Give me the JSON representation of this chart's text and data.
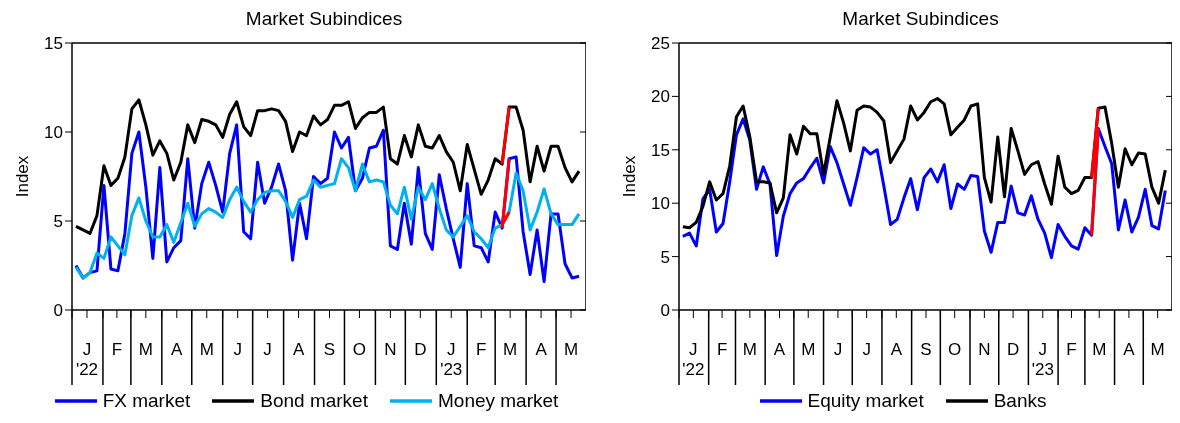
{
  "chart_data": [
    {
      "type": "line",
      "title": "Market Subindices",
      "ylabel": "Index",
      "legend": "bottom",
      "xlim": [
        "2022-01-01",
        "2023-05-31"
      ],
      "xticks": [
        {
          "value": "2022-01-01",
          "label": null
        },
        {
          "value": "2022-01-16",
          "label": "J\n'22"
        },
        {
          "value": "2022-02-01",
          "label": null
        },
        {
          "value": "2022-02-15",
          "label": "F"
        },
        {
          "value": "2022-03-01",
          "label": null
        },
        {
          "value": "2022-03-16",
          "label": "M"
        },
        {
          "value": "2022-04-01",
          "label": null
        },
        {
          "value": "2022-04-16",
          "label": "A"
        },
        {
          "value": "2022-05-01",
          "label": null
        },
        {
          "value": "2022-05-16",
          "label": "M"
        },
        {
          "value": "2022-06-01",
          "label": null
        },
        {
          "value": "2022-06-16",
          "label": "J"
        },
        {
          "value": "2022-07-01",
          "label": null
        },
        {
          "value": "2022-07-16",
          "label": "J"
        },
        {
          "value": "2022-08-01",
          "label": null
        },
        {
          "value": "2022-08-16",
          "label": "A"
        },
        {
          "value": "2022-09-01",
          "label": null
        },
        {
          "value": "2022-09-16",
          "label": "S"
        },
        {
          "value": "2022-10-01",
          "label": null
        },
        {
          "value": "2022-10-16",
          "label": "O"
        },
        {
          "value": "2022-11-01",
          "label": null
        },
        {
          "value": "2022-11-16",
          "label": "N"
        },
        {
          "value": "2022-12-01",
          "label": null
        },
        {
          "value": "2022-12-16",
          "label": "D"
        },
        {
          "value": "2023-01-01",
          "label": null
        },
        {
          "value": "2023-01-16",
          "label": "J\n'23"
        },
        {
          "value": "2023-02-01",
          "label": null
        },
        {
          "value": "2023-02-15",
          "label": "F"
        },
        {
          "value": "2023-03-01",
          "label": null
        },
        {
          "value": "2023-03-16",
          "label": "M"
        },
        {
          "value": "2023-04-01",
          "label": null
        },
        {
          "value": "2023-04-16",
          "label": "A"
        },
        {
          "value": "2023-05-01",
          "label": null
        },
        {
          "value": "2023-05-16",
          "label": "M"
        }
      ],
      "ylim": [
        0,
        15
      ],
      "yticks": [
        0,
        5,
        10,
        15
      ],
      "x": [
        "2022-01-05",
        "2022-01-12",
        "2022-01-19",
        "2022-01-26",
        "2022-02-02",
        "2022-02-09",
        "2022-02-16",
        "2022-02-23",
        "2022-03-02",
        "2022-03-09",
        "2022-03-16",
        "2022-03-23",
        "2022-03-30",
        "2022-04-06",
        "2022-04-13",
        "2022-04-20",
        "2022-04-27",
        "2022-05-04",
        "2022-05-11",
        "2022-05-18",
        "2022-05-25",
        "2022-06-01",
        "2022-06-08",
        "2022-06-15",
        "2022-06-22",
        "2022-06-29",
        "2022-07-06",
        "2022-07-13",
        "2022-07-20",
        "2022-07-27",
        "2022-08-03",
        "2022-08-10",
        "2022-08-17",
        "2022-08-24",
        "2022-08-31",
        "2022-09-07",
        "2022-09-14",
        "2022-09-21",
        "2022-09-28",
        "2022-10-05",
        "2022-10-12",
        "2022-10-19",
        "2022-10-26",
        "2022-11-02",
        "2022-11-09",
        "2022-11-16",
        "2022-11-23",
        "2022-11-30",
        "2022-12-07",
        "2022-12-14",
        "2022-12-21",
        "2022-12-28",
        "2023-01-04",
        "2023-01-11",
        "2023-01-18",
        "2023-01-25",
        "2023-02-01",
        "2023-02-08",
        "2023-02-15",
        "2023-02-22",
        "2023-03-01",
        "2023-03-08",
        "2023-03-15",
        "2023-03-22",
        "2023-03-29",
        "2023-04-05",
        "2023-04-12",
        "2023-04-19",
        "2023-04-26",
        "2023-05-03",
        "2023-05-10",
        "2023-05-17",
        "2023-05-24"
      ],
      "series": [
        {
          "name": "FX market",
          "color": "#0000ff",
          "values": [
            2.5,
            1.8,
            2.1,
            2.2,
            7.0,
            2.3,
            2.2,
            4.3,
            8.8,
            10.0,
            6.9,
            2.9,
            8.0,
            2.7,
            3.5,
            3.9,
            8.5,
            4.6,
            7.1,
            8.3,
            7.0,
            5.5,
            8.8,
            10.4,
            4.4,
            4.0,
            8.3,
            6.0,
            6.9,
            8.2,
            6.7,
            2.8,
            6.0,
            4.0,
            7.5,
            7.1,
            7.4,
            10.0,
            9.1,
            9.7,
            6.7,
            7.4,
            9.1,
            9.2,
            10.1,
            3.6,
            3.4,
            6.0,
            3.7,
            8.0,
            4.3,
            3.4,
            7.6,
            5.7,
            4.0,
            2.4,
            7.1,
            3.6,
            3.5,
            2.7,
            5.5,
            4.6,
            8.5,
            8.6,
            4.4,
            2.0,
            4.5,
            1.6,
            5.4,
            5.4,
            2.6,
            1.8,
            1.9
          ]
        },
        {
          "name": "Bond market",
          "color": "#000000",
          "values": [
            4.7,
            4.5,
            4.3,
            5.3,
            8.1,
            7.0,
            7.4,
            8.6,
            11.3,
            11.8,
            10.4,
            8.7,
            9.5,
            8.8,
            7.3,
            8.3,
            10.4,
            9.4,
            10.7,
            10.6,
            10.4,
            9.7,
            11.0,
            11.7,
            10.3,
            9.8,
            11.2,
            11.2,
            11.3,
            11.2,
            10.6,
            8.9,
            10.0,
            9.8,
            10.9,
            10.4,
            10.7,
            11.5,
            11.5,
            11.7,
            10.2,
            10.8,
            11.1,
            11.1,
            11.4,
            8.5,
            8.2,
            9.8,
            8.6,
            10.4,
            9.2,
            9.1,
            9.8,
            8.9,
            8.3,
            6.7,
            9.3,
            7.9,
            6.5,
            7.3,
            8.5,
            8.2,
            11.4,
            11.4,
            10.1,
            7.2,
            9.2,
            7.8,
            9.2,
            9.2,
            8.0,
            7.2,
            7.8
          ]
        },
        {
          "name": "Money market",
          "color": "#00b0f0",
          "values": [
            2.4,
            1.8,
            2.1,
            3.2,
            2.9,
            4.1,
            3.6,
            3.1,
            5.3,
            6.3,
            5.0,
            4.1,
            4.1,
            4.8,
            3.8,
            4.9,
            6.0,
            4.7,
            5.4,
            5.7,
            5.5,
            5.2,
            6.2,
            6.9,
            6.1,
            5.5,
            6.2,
            6.6,
            6.7,
            6.7,
            6.1,
            5.2,
            6.2,
            6.4,
            7.3,
            6.9,
            7.0,
            7.1,
            8.5,
            8.0,
            6.7,
            8.2,
            7.2,
            7.3,
            7.2,
            5.9,
            5.4,
            6.9,
            5.1,
            6.9,
            6.2,
            7.1,
            5.7,
            4.5,
            4.1,
            4.7,
            5.3,
            4.4,
            4.0,
            3.5,
            4.6,
            4.8,
            5.5,
            7.7,
            6.7,
            4.5,
            5.5,
            6.8,
            5.4,
            4.8,
            4.8,
            4.8,
            5.4
          ]
        },
        {
          "color": "#ff0000",
          "x": [
            "2023-03-08",
            "2023-03-15"
          ],
          "values": [
            8.2,
            11.4
          ]
        },
        {
          "color": "#ff0000",
          "x": [
            "2023-03-08",
            "2023-03-15"
          ],
          "values": [
            4.6,
            8.5
          ]
        },
        {
          "color": "#ff0000",
          "x": [
            "2023-03-08",
            "2023-03-15"
          ],
          "values": [
            4.8,
            5.5
          ]
        }
      ]
    },
    {
      "type": "line",
      "title": "Market Subindices",
      "ylabel": "Index",
      "legend": "bottom",
      "xlim": [
        "2022-01-01",
        "2023-05-31"
      ],
      "xticks": [
        {
          "value": "2022-01-01",
          "label": null
        },
        {
          "value": "2022-01-16",
          "label": "J\n'22"
        },
        {
          "value": "2022-02-01",
          "label": null
        },
        {
          "value": "2022-02-15",
          "label": "F"
        },
        {
          "value": "2022-03-01",
          "label": null
        },
        {
          "value": "2022-03-16",
          "label": "M"
        },
        {
          "value": "2022-04-01",
          "label": null
        },
        {
          "value": "2022-04-16",
          "label": "A"
        },
        {
          "value": "2022-05-01",
          "label": null
        },
        {
          "value": "2022-05-16",
          "label": "M"
        },
        {
          "value": "2022-06-01",
          "label": null
        },
        {
          "value": "2022-06-16",
          "label": "J"
        },
        {
          "value": "2022-07-01",
          "label": null
        },
        {
          "value": "2022-07-16",
          "label": "J"
        },
        {
          "value": "2022-08-01",
          "label": null
        },
        {
          "value": "2022-08-16",
          "label": "A"
        },
        {
          "value": "2022-09-01",
          "label": null
        },
        {
          "value": "2022-09-16",
          "label": "S"
        },
        {
          "value": "2022-10-01",
          "label": null
        },
        {
          "value": "2022-10-16",
          "label": "O"
        },
        {
          "value": "2022-11-01",
          "label": null
        },
        {
          "value": "2022-11-16",
          "label": "N"
        },
        {
          "value": "2022-12-01",
          "label": null
        },
        {
          "value": "2022-12-16",
          "label": "D"
        },
        {
          "value": "2023-01-01",
          "label": null
        },
        {
          "value": "2023-01-16",
          "label": "J\n'23"
        },
        {
          "value": "2023-02-01",
          "label": null
        },
        {
          "value": "2023-02-15",
          "label": "F"
        },
        {
          "value": "2023-03-01",
          "label": null
        },
        {
          "value": "2023-03-16",
          "label": "M"
        },
        {
          "value": "2023-04-01",
          "label": null
        },
        {
          "value": "2023-04-16",
          "label": "A"
        },
        {
          "value": "2023-05-01",
          "label": null
        },
        {
          "value": "2023-05-16",
          "label": "M"
        }
      ],
      "ylim": [
        0,
        25
      ],
      "yticks": [
        0,
        5,
        10,
        15,
        20,
        25
      ],
      "x": [
        "2022-01-05",
        "2022-01-12",
        "2022-01-19",
        "2022-01-26",
        "2022-02-02",
        "2022-02-09",
        "2022-02-16",
        "2022-02-23",
        "2022-03-02",
        "2022-03-09",
        "2022-03-16",
        "2022-03-23",
        "2022-03-30",
        "2022-04-06",
        "2022-04-13",
        "2022-04-20",
        "2022-04-27",
        "2022-05-04",
        "2022-05-11",
        "2022-05-18",
        "2022-05-25",
        "2022-06-01",
        "2022-06-08",
        "2022-06-15",
        "2022-06-22",
        "2022-06-29",
        "2022-07-06",
        "2022-07-13",
        "2022-07-20",
        "2022-07-27",
        "2022-08-03",
        "2022-08-10",
        "2022-08-17",
        "2022-08-24",
        "2022-08-31",
        "2022-09-07",
        "2022-09-14",
        "2022-09-21",
        "2022-09-28",
        "2022-10-05",
        "2022-10-12",
        "2022-10-19",
        "2022-10-26",
        "2022-11-02",
        "2022-11-09",
        "2022-11-16",
        "2022-11-23",
        "2022-11-30",
        "2022-12-07",
        "2022-12-14",
        "2022-12-21",
        "2022-12-28",
        "2023-01-04",
        "2023-01-11",
        "2023-01-18",
        "2023-01-25",
        "2023-02-01",
        "2023-02-08",
        "2023-02-15",
        "2023-02-22",
        "2023-03-01",
        "2023-03-08",
        "2023-03-15",
        "2023-03-22",
        "2023-03-29",
        "2023-04-05",
        "2023-04-12",
        "2023-04-19",
        "2023-04-26",
        "2023-05-03",
        "2023-05-10",
        "2023-05-17",
        "2023-05-24"
      ],
      "series": [
        {
          "name": "Equity market",
          "color": "#0000ff",
          "values": [
            6.9,
            7.2,
            6.0,
            10.4,
            11.3,
            7.3,
            8.1,
            12.0,
            16.4,
            17.9,
            15.9,
            11.3,
            13.4,
            11.8,
            5.1,
            8.8,
            10.9,
            11.9,
            12.3,
            13.3,
            14.2,
            11.9,
            15.3,
            13.8,
            11.8,
            9.8,
            12.4,
            15.2,
            14.6,
            15.0,
            11.6,
            8.0,
            8.5,
            10.5,
            12.3,
            9.4,
            12.4,
            13.2,
            12.0,
            13.6,
            9.5,
            11.8,
            11.3,
            12.6,
            12.5,
            7.4,
            5.4,
            8.2,
            8.2,
            11.6,
            9.1,
            8.9,
            10.7,
            8.5,
            7.2,
            4.9,
            8.0,
            6.9,
            6.0,
            5.7,
            7.7,
            7.0,
            17.0,
            15.3,
            13.7,
            7.5,
            10.3,
            7.3,
            8.7,
            11.3,
            7.9,
            7.6,
            11.2
          ]
        },
        {
          "name": "Banks",
          "color": "#000000",
          "values": [
            7.8,
            7.7,
            8.2,
            9.7,
            12.0,
            10.3,
            10.9,
            13.5,
            18.1,
            19.1,
            16.2,
            12.0,
            12.0,
            11.9,
            9.1,
            10.5,
            16.4,
            14.6,
            17.2,
            16.5,
            16.5,
            12.7,
            16.2,
            19.6,
            17.5,
            14.9,
            18.7,
            19.1,
            19.0,
            18.5,
            17.7,
            13.8,
            14.9,
            16.0,
            19.1,
            17.8,
            18.5,
            19.5,
            19.8,
            19.3,
            16.4,
            17.1,
            17.8,
            19.1,
            19.3,
            12.4,
            10.1,
            16.2,
            10.6,
            17.0,
            14.9,
            12.7,
            13.6,
            13.9,
            11.8,
            9.9,
            14.4,
            11.5,
            10.9,
            11.2,
            12.4,
            12.4,
            18.9,
            19.0,
            15.6,
            11.5,
            15.1,
            13.6,
            14.7,
            14.6,
            11.5,
            10.0,
            13.1
          ]
        },
        {
          "color": "#ff0000",
          "x": [
            "2023-03-08",
            "2023-03-15"
          ],
          "values": [
            7.0,
            17.0
          ]
        },
        {
          "color": "#ff0000",
          "x": [
            "2023-03-08",
            "2023-03-15"
          ],
          "values": [
            12.4,
            18.9
          ]
        }
      ]
    }
  ]
}
